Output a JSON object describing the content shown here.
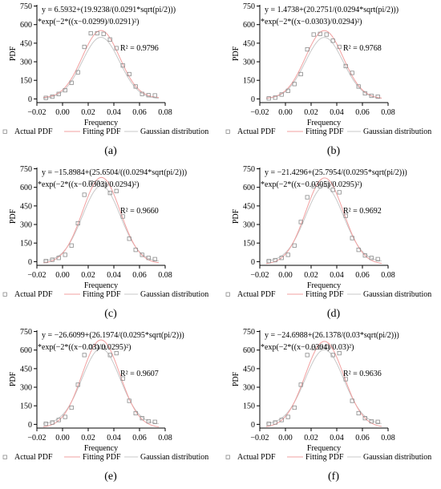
{
  "chart_data": [
    {
      "panel": "(a)",
      "type": "scatter",
      "equation_line1": "y = 6.5932+(19.9238/(0.0291*sqrt(pi/2)))",
      "equation_line2": "*exp(−2*((x−0.0299)/0.0291)²)",
      "r2": "R² = 0.9796",
      "xlabel": "Frequency",
      "ylabel": "PDF",
      "xlim": [
        -0.02,
        0.08
      ],
      "ylim": [
        -30,
        760
      ],
      "xticks": [
        "−0.02",
        "0.00",
        "0.02",
        "0.04",
        "0.06",
        "0.08"
      ],
      "yticks": [
        "0",
        "150",
        "300",
        "450",
        "600",
        "750"
      ],
      "fit": {
        "a": 6.5932,
        "b": 19.9238,
        "c": 0.0299,
        "w": 0.0291
      },
      "gauss": {
        "mu": 0.0299,
        "sigma": 0.01455,
        "scale": 0.9
      },
      "series": [
        {
          "name": "Actual PDF",
          "x": [
            -0.013,
            -0.008,
            -0.003,
            0.002,
            0.007,
            0.012,
            0.017,
            0.022,
            0.027,
            0.032,
            0.037,
            0.042,
            0.047,
            0.052,
            0.057,
            0.062,
            0.067,
            0.072
          ],
          "y": [
            8,
            18,
            40,
            70,
            130,
            215,
            420,
            530,
            530,
            525,
            480,
            410,
            270,
            200,
            100,
            40,
            30,
            28
          ]
        }
      ]
    },
    {
      "panel": "(b)",
      "type": "scatter",
      "equation_line1": "y = 1.4738+(20.2751/(0.0294*sqrt(pi/2)))",
      "equation_line2": "*exp(−2*((x−0.0303)/0.0294)²)",
      "r2": "R² = 0.9768",
      "xlabel": "Frequency",
      "ylabel": "PDF",
      "xlim": [
        -0.02,
        0.08
      ],
      "ylim": [
        -30,
        760
      ],
      "xticks": [
        "−0.02",
        "0.00",
        "0.02",
        "0.04",
        "0.06",
        "0.08"
      ],
      "yticks": [
        "0",
        "150",
        "300",
        "450",
        "600",
        "750"
      ],
      "fit": {
        "a": 1.4738,
        "b": 20.2751,
        "c": 0.0303,
        "w": 0.0294
      },
      "gauss": {
        "mu": 0.0303,
        "sigma": 0.0147,
        "scale": 0.9
      },
      "series": [
        {
          "name": "Actual PDF",
          "x": [
            -0.013,
            -0.008,
            -0.003,
            0.002,
            0.007,
            0.012,
            0.017,
            0.022,
            0.027,
            0.032,
            0.037,
            0.042,
            0.047,
            0.052,
            0.057,
            0.062,
            0.067,
            0.072
          ],
          "y": [
            4,
            10,
            35,
            65,
            120,
            200,
            400,
            520,
            525,
            520,
            470,
            420,
            265,
            210,
            100,
            45,
            25,
            18
          ]
        }
      ]
    },
    {
      "panel": "(c)",
      "type": "scatter",
      "equation_line1": "y = −15.8984+(25.6504/((0.0294*sqrt(pi/2)))",
      "equation_line2": "*exp(−2*((x−0.0303)/0.0294)²)",
      "r2": "R² = 0.9660",
      "xlabel": "Frequency",
      "ylabel": "PDF",
      "xlim": [
        -0.02,
        0.08
      ],
      "ylim": [
        -30,
        760
      ],
      "xticks": [
        "−0.02",
        "0.00",
        "0.02",
        "0.04",
        "0.06",
        "0.08"
      ],
      "yticks": [
        "0",
        "150",
        "300",
        "450",
        "600",
        "750"
      ],
      "fit": {
        "a": -15.8984,
        "b": 25.6504,
        "c": 0.0303,
        "w": 0.0294
      },
      "gauss": {
        "mu": 0.0303,
        "sigma": 0.0147,
        "scale": 0.9
      },
      "series": [
        {
          "name": "Actual PDF",
          "x": [
            -0.013,
            -0.008,
            -0.003,
            0.002,
            0.007,
            0.012,
            0.017,
            0.022,
            0.027,
            0.032,
            0.037,
            0.042,
            0.047,
            0.052,
            0.057,
            0.062,
            0.067,
            0.072
          ],
          "y": [
            5,
            15,
            30,
            55,
            130,
            310,
            540,
            640,
            640,
            620,
            555,
            570,
            365,
            185,
            95,
            55,
            30,
            20
          ]
        }
      ]
    },
    {
      "panel": "(d)",
      "type": "scatter",
      "equation_line1": "y = −21.4296+(25.7954/(0.0295*sqrt(pi/2)))",
      "equation_line2": "*exp(−2*((x−0.0305)/0.0295)²)",
      "r2": "R² = 0.9692",
      "xlabel": "Frequency",
      "ylabel": "PDF",
      "xlim": [
        -0.02,
        0.08
      ],
      "ylim": [
        -30,
        760
      ],
      "xticks": [
        "−0.02",
        "0.00",
        "0.02",
        "0.04",
        "0.06",
        "0.08"
      ],
      "yticks": [
        "0",
        "150",
        "300",
        "450",
        "600",
        "750"
      ],
      "fit": {
        "a": -21.4296,
        "b": 25.7954,
        "c": 0.0305,
        "w": 0.0295
      },
      "gauss": {
        "mu": 0.0305,
        "sigma": 0.01475,
        "scale": 0.9
      },
      "series": [
        {
          "name": "Actual PDF",
          "x": [
            -0.013,
            -0.008,
            -0.003,
            0.002,
            0.007,
            0.012,
            0.017,
            0.022,
            0.027,
            0.032,
            0.037,
            0.042,
            0.047,
            0.052,
            0.057,
            0.062,
            0.067,
            0.072
          ],
          "y": [
            5,
            12,
            30,
            55,
            130,
            320,
            520,
            610,
            610,
            620,
            580,
            560,
            370,
            190,
            95,
            50,
            30,
            20
          ]
        }
      ]
    },
    {
      "panel": "(e)",
      "type": "scatter",
      "equation_line1": "y = −26.6099+(26.1974/(0.0295*sqrt(pi/2)))",
      "equation_line2": "*exp(−2*((x−0.03)/0.0295)²)",
      "r2": "R² = 0.9607",
      "xlabel": "Frequency",
      "ylabel": "PDF",
      "xlim": [
        -0.02,
        0.08
      ],
      "ylim": [
        -30,
        760
      ],
      "xticks": [
        "−0.02",
        "0.00",
        "0.02",
        "0.04",
        "0.06",
        "0.08"
      ],
      "yticks": [
        "0",
        "150",
        "300",
        "450",
        "600",
        "750"
      ],
      "fit": {
        "a": -26.6099,
        "b": 26.1974,
        "c": 0.03,
        "w": 0.0295
      },
      "gauss": {
        "mu": 0.03,
        "sigma": 0.01475,
        "scale": 0.9
      },
      "series": [
        {
          "name": "Actual PDF",
          "x": [
            -0.013,
            -0.008,
            -0.003,
            0.002,
            0.007,
            0.012,
            0.017,
            0.022,
            0.027,
            0.032,
            0.037,
            0.042,
            0.047,
            0.052,
            0.057,
            0.062,
            0.067,
            0.072
          ],
          "y": [
            5,
            15,
            35,
            60,
            135,
            320,
            560,
            625,
            625,
            620,
            560,
            575,
            370,
            190,
            90,
            50,
            25,
            20
          ]
        }
      ]
    },
    {
      "panel": "(f)",
      "type": "scatter",
      "equation_line1": "y = −24.6988+(26.1378/(0.03*sqrt(pi/2)))",
      "equation_line2": "*exp(−2*((x−0.0304)/0.03)²)",
      "r2": "R² = 0.9636",
      "xlabel": "Frequency",
      "ylabel": "PDF",
      "xlim": [
        -0.02,
        0.08
      ],
      "ylim": [
        -30,
        760
      ],
      "xticks": [
        "−0.02",
        "0.00",
        "0.02",
        "0.04",
        "0.06",
        "0.08"
      ],
      "yticks": [
        "0",
        "150",
        "300",
        "450",
        "600",
        "750"
      ],
      "fit": {
        "a": -24.6988,
        "b": 26.1378,
        "c": 0.0304,
        "w": 0.03
      },
      "gauss": {
        "mu": 0.0304,
        "sigma": 0.015,
        "scale": 0.9
      },
      "series": [
        {
          "name": "Actual PDF",
          "x": [
            -0.013,
            -0.008,
            -0.003,
            0.002,
            0.007,
            0.012,
            0.017,
            0.022,
            0.027,
            0.032,
            0.037,
            0.042,
            0.047,
            0.052,
            0.057,
            0.062,
            0.067,
            0.072
          ],
          "y": [
            5,
            15,
            35,
            60,
            135,
            320,
            560,
            615,
            620,
            625,
            560,
            575,
            365,
            190,
            90,
            50,
            25,
            20
          ]
        }
      ]
    }
  ],
  "legend": {
    "actual": "Actual PDF",
    "fitting": "Fitting PDF",
    "gaussian": "Gaussian distribution"
  },
  "colors": {
    "actual_marker": "#8a8a8a",
    "fitting_line": "#f2a0a0",
    "gaussian_line": "#c8c8c8",
    "axis": "#000000"
  }
}
